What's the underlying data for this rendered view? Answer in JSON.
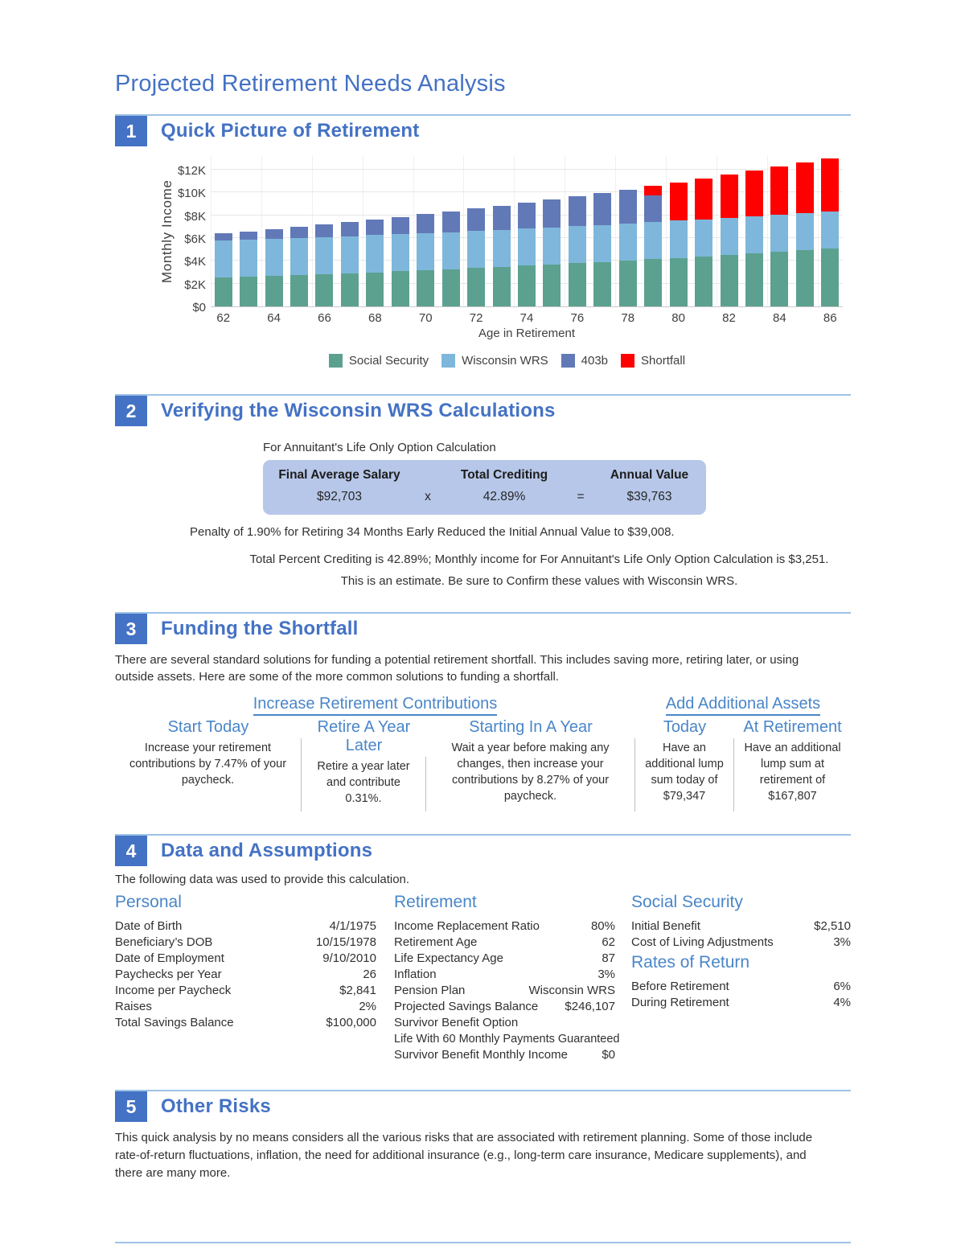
{
  "page": {
    "title": "Projected Retirement Needs Analysis"
  },
  "sections": {
    "s1": {
      "num": "1",
      "title": "Quick Picture of Retirement"
    },
    "s2": {
      "num": "2",
      "title": "Verifying the Wisconsin WRS Calculations",
      "caption": "For Annuitant's Life Only Option Calculation",
      "table": {
        "headers": [
          "Final Average Salary",
          "Total Crediting",
          "Annual Value"
        ],
        "salary": "$92,703",
        "times": "x",
        "crediting": "42.89%",
        "equals": "=",
        "annual_value": "$39,763"
      },
      "penalty_note": "Penalty of 1.90% for Retiring 34 Months Early Reduced the Initial Annual Value to $39,008.",
      "crediting_note": "Total Percent Crediting is 42.89%; Monthly income for For Annuitant's Life Only Option Calculation is $3,251.",
      "estimate_note": "This is an estimate. Be sure to Confirm these values with Wisconsin WRS."
    },
    "s3": {
      "num": "3",
      "title": "Funding the Shortfall",
      "intro": "There are several standard solutions for funding a potential retirement shortfall. This includes saving more, retiring later, or using outside assets. Here are some of the more common solutions to funding a shortfall.",
      "groups": [
        {
          "label": "Increase Retirement Contributions"
        },
        {
          "label": "Add Additional Assets"
        }
      ],
      "columns": [
        {
          "header": "Start Today",
          "body": "Increase your retirement contributions by 7.47% of your paycheck."
        },
        {
          "header": "Retire A Year Later",
          "body": "Retire a year later and contribute 0.31%."
        },
        {
          "header": "Starting In A Year",
          "body": "Wait a year before making any changes, then increase your contributions by 8.27% of your paycheck."
        },
        {
          "header": "Today",
          "body": "Have an additional lump sum today of $79,347"
        },
        {
          "header": "At Retirement",
          "body": "Have an additional lump sum at retirement of $167,807"
        }
      ]
    },
    "s4": {
      "num": "4",
      "title": "Data and Assumptions",
      "intro": "The following data was used to provide this calculation.",
      "personal": {
        "heading": "Personal",
        "rows": [
          [
            "Date of Birth",
            "4/1/1975"
          ],
          [
            "Beneficiary’s DOB",
            "10/15/1978"
          ],
          [
            "Date of Employment",
            "9/10/2010"
          ],
          [
            "Paychecks per Year",
            "26"
          ],
          [
            "Income per Paycheck",
            "$2,841"
          ],
          [
            "Raises",
            "2%"
          ],
          [
            "Total Savings Balance",
            "$100,000"
          ]
        ]
      },
      "retirement": {
        "heading": "Retirement",
        "rows": [
          [
            "Income Replacement Ratio",
            "80%"
          ],
          [
            "Retirement Age",
            "62"
          ],
          [
            "Life Expectancy Age",
            "87"
          ],
          [
            "Inflation",
            "3%"
          ],
          [
            "Pension Plan",
            "Wisconsin WRS"
          ],
          [
            "Projected Savings Balance",
            "$246,107"
          ],
          [
            "Survivor Benefit Option",
            ""
          ]
        ],
        "survivor_option_value": "Life With 60 Monthly Payments Guaranteed",
        "survivor_income_row": [
          "Survivor Benefit Monthly Income",
          "$0"
        ]
      },
      "social_security": {
        "heading": "Social Security",
        "rows": [
          [
            "Initial Benefit",
            "$2,510"
          ],
          [
            "Cost of Living Adjustments",
            "3%"
          ]
        ]
      },
      "rates_of_return": {
        "heading": "Rates of Return",
        "rows": [
          [
            "Before Retirement",
            "6%"
          ],
          [
            "During Retirement",
            "4%"
          ]
        ]
      }
    },
    "s5": {
      "num": "5",
      "title": "Other Risks",
      "body": "This quick analysis by no means considers all the various risks that are associated with retirement planning. Some of those include rate-of-return fluctuations, inflation, the need for additional insurance (e.g., long-term care insurance, Medicare supplements), and there are many more."
    }
  },
  "chart_data": {
    "type": "bar",
    "stacked": true,
    "title": "",
    "xlabel": "Age in Retirement",
    "ylabel": "Monthly Income",
    "x": [
      62,
      63,
      64,
      65,
      66,
      67,
      68,
      69,
      70,
      71,
      72,
      73,
      74,
      75,
      76,
      77,
      78,
      79,
      80,
      81,
      82,
      83,
      84,
      85,
      86
    ],
    "series": [
      {
        "name": "Social Security",
        "color": "#5CA18F",
        "values": [
          2.51,
          2.59,
          2.66,
          2.74,
          2.83,
          2.91,
          3.0,
          3.09,
          3.18,
          3.28,
          3.37,
          3.47,
          3.58,
          3.69,
          3.8,
          3.91,
          4.03,
          4.15,
          4.27,
          4.4,
          4.53,
          4.67,
          4.81,
          4.95,
          5.1
        ]
      },
      {
        "name": "Wisconsin WRS",
        "color": "#7EB7DB",
        "values": [
          3.25,
          3.25,
          3.25,
          3.25,
          3.25,
          3.25,
          3.25,
          3.25,
          3.25,
          3.25,
          3.25,
          3.25,
          3.25,
          3.25,
          3.25,
          3.25,
          3.25,
          3.25,
          3.25,
          3.25,
          3.25,
          3.25,
          3.25,
          3.25,
          3.25
        ]
      },
      {
        "name": "403b",
        "color": "#6279B8",
        "values": [
          0.64,
          0.75,
          0.88,
          1.0,
          1.12,
          1.26,
          1.39,
          1.53,
          1.68,
          1.82,
          1.98,
          2.14,
          2.29,
          2.46,
          2.63,
          2.81,
          2.99,
          2.33,
          0,
          0,
          0,
          0,
          0,
          0,
          0
        ]
      },
      {
        "name": "Shortfall",
        "color": "#FF0000",
        "values": [
          0,
          0,
          0,
          0,
          0,
          0,
          0,
          0,
          0,
          0,
          0,
          0,
          0,
          0,
          0,
          0,
          0,
          0.85,
          3.37,
          3.57,
          3.78,
          3.98,
          4.2,
          4.43,
          4.66
        ]
      }
    ],
    "units": "thousands of dollars per month",
    "ylim": [
      0,
      13.2
    ],
    "ygrid": [
      2,
      4,
      6,
      8,
      10,
      12
    ],
    "yticks": [
      {
        "label": "$0",
        "value": 0
      },
      {
        "label": "$2K",
        "value": 2
      },
      {
        "label": "$4K",
        "value": 4
      },
      {
        "label": "$6K",
        "value": 6
      },
      {
        "label": "$8K",
        "value": 8
      },
      {
        "label": "$10K",
        "value": 10
      },
      {
        "label": "$12K",
        "value": 12
      }
    ],
    "xticks": [
      62,
      64,
      66,
      68,
      70,
      72,
      74,
      76,
      78,
      80,
      82,
      84,
      86
    ],
    "legend_position": "bottom",
    "grid": true
  },
  "colors": {
    "accent_blue": "#4472C4",
    "subheading_blue": "#4A86C8",
    "rule_blue": "#9DC3E6",
    "table_background": "#B7C7E9",
    "social_security": "#5CA18F",
    "wisconsin_wrs": "#7EB7DB",
    "b403": "#6279B8",
    "shortfall": "#FF0000"
  }
}
